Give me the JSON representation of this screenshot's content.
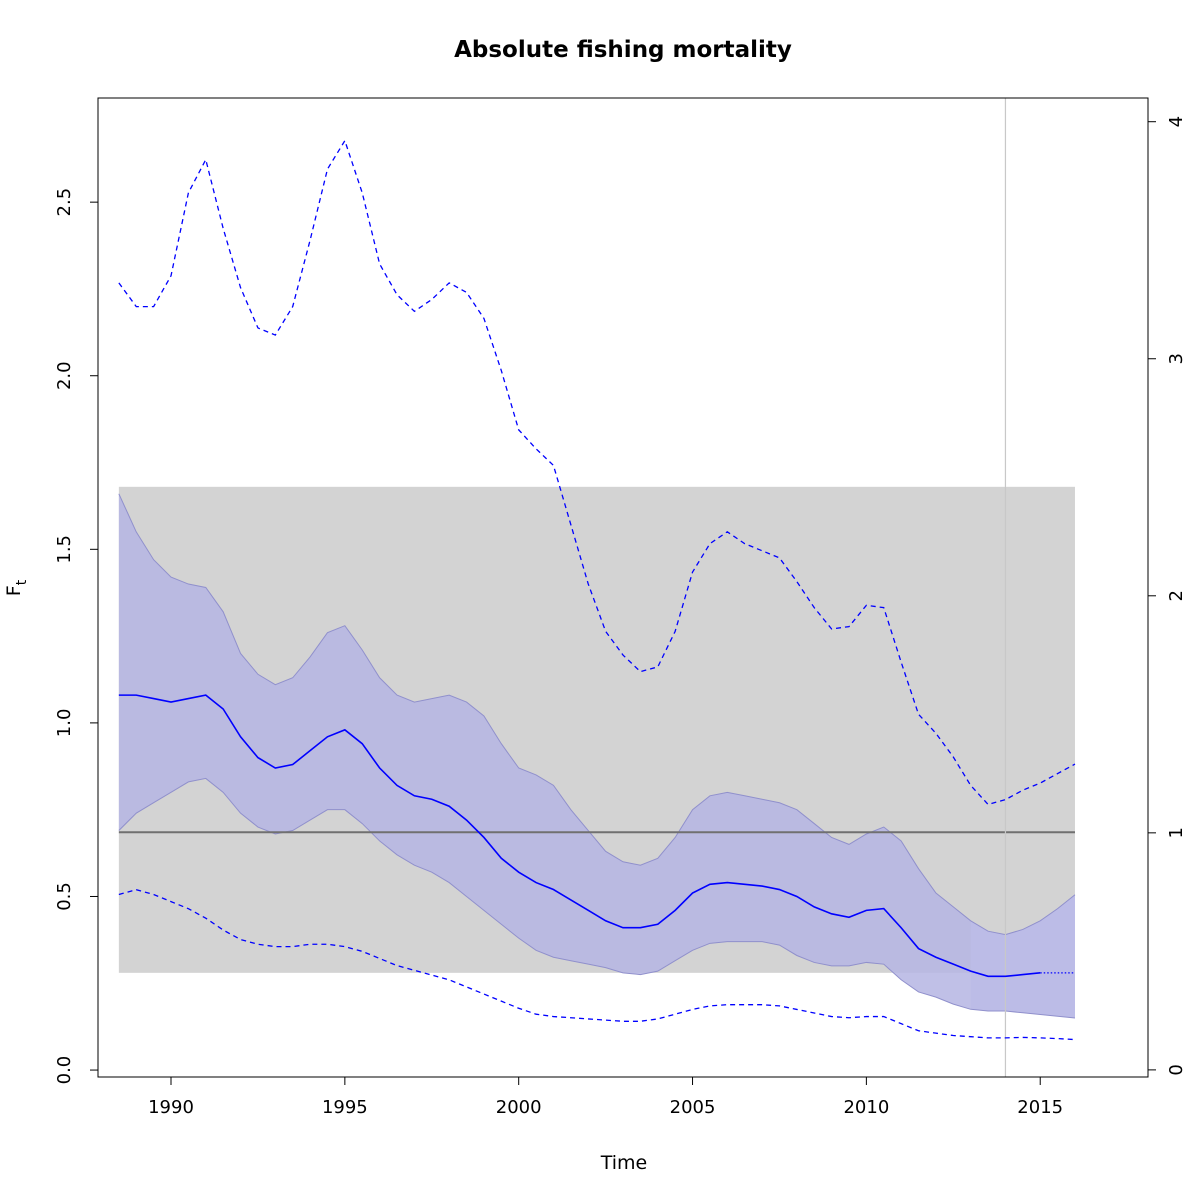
{
  "chart_data": {
    "type": "line",
    "title": "Absolute fishing mortality",
    "xlabel": "Time",
    "ylabel": "F",
    "ylabel_subscript": "t",
    "xlim": [
      1987.9,
      2018.1
    ],
    "ylim": [
      -0.02,
      2.8
    ],
    "ylim_right": [
      -0.03,
      4.1
    ],
    "x_ticks": [
      1990,
      1995,
      2000,
      2005,
      2010,
      2015
    ],
    "y_ticks": [
      0.0,
      0.5,
      1.0,
      1.5,
      2.0,
      2.5
    ],
    "y_ticks_right": [
      0,
      1,
      2,
      3,
      4
    ],
    "grid": false,
    "reference_band": {
      "x_range": [
        1988.5,
        2016.0
      ],
      "y_range": [
        0.28,
        1.68
      ],
      "color": "#d3d3d3"
    },
    "reference_line": {
      "y": 0.685,
      "color": "#707070"
    },
    "vertical_line": {
      "x": 2014.0,
      "color": "#c8c8c8"
    },
    "colors": {
      "main": "#0000ff",
      "ci_fill": "#b5b5e3",
      "ci_fill_projection": "#e3e3ff",
      "ci_border": "#9090cc"
    },
    "series": [
      {
        "role": "F",
        "style": "solid",
        "x": [
          1988.5,
          1989.0,
          1989.5,
          1990.0,
          1990.5,
          1991.0,
          1991.5,
          1992.0,
          1992.5,
          1993.0,
          1993.5,
          1994.0,
          1994.5,
          1995.0,
          1995.5,
          1996.0,
          1996.5,
          1997.0,
          1997.5,
          1998.0,
          1998.5,
          1999.0,
          1999.5,
          2000.0,
          2000.5,
          2001.0,
          2001.5,
          2002.0,
          2002.5,
          2003.0,
          2003.5,
          2004.0,
          2004.5,
          2005.0,
          2005.5,
          2006.0,
          2006.5,
          2007.0,
          2007.5,
          2008.0,
          2008.5,
          2009.0,
          2009.5,
          2010.0,
          2010.5,
          2011.0,
          2011.5,
          2012.0,
          2012.5,
          2013.0,
          2013.5,
          2014.0,
          2014.5,
          2015.0
        ],
        "y": [
          1.08,
          1.08,
          1.07,
          1.06,
          1.07,
          1.08,
          1.04,
          0.96,
          0.9,
          0.87,
          0.88,
          0.92,
          0.96,
          0.98,
          0.94,
          0.87,
          0.82,
          0.79,
          0.78,
          0.76,
          0.72,
          0.67,
          0.61,
          0.57,
          0.54,
          0.52,
          0.49,
          0.46,
          0.43,
          0.41,
          0.41,
          0.42,
          0.46,
          0.51,
          0.535,
          0.54,
          0.535,
          0.53,
          0.52,
          0.5,
          0.47,
          0.45,
          0.44,
          0.46,
          0.465,
          0.41,
          0.35,
          0.325,
          0.305,
          0.285,
          0.27,
          0.27,
          0.275,
          0.28
        ]
      },
      {
        "role": "F projection",
        "style": "dotted",
        "x": [
          2015.0,
          2015.5,
          2016.0
        ],
        "y": [
          0.28,
          0.28,
          0.28
        ]
      },
      {
        "role": "upper",
        "style": "dashed",
        "axis": "right",
        "x": [
          1988.5,
          1989.0,
          1989.5,
          1990.0,
          1990.5,
          1991.0,
          1991.5,
          1992.0,
          1992.5,
          1993.0,
          1993.5,
          1994.0,
          1994.5,
          1995.0,
          1995.5,
          1996.0,
          1996.5,
          1997.0,
          1997.5,
          1998.0,
          1998.5,
          1999.0,
          1999.5,
          2000.0,
          2000.5,
          2001.0,
          2001.5,
          2002.0,
          2002.5,
          2003.0,
          2003.5,
          2004.0,
          2004.5,
          2005.0,
          2005.5,
          2006.0,
          2006.5,
          2007.0,
          2007.5,
          2008.0,
          2008.5,
          2009.0,
          2009.5,
          2010.0,
          2010.5,
          2011.0,
          2011.5,
          2012.0,
          2012.5,
          2013.0,
          2013.5,
          2014.0,
          2014.5,
          2015.0,
          2015.5,
          2016.0
        ],
        "y": [
          3.32,
          3.22,
          3.22,
          3.35,
          3.7,
          3.84,
          3.55,
          3.3,
          3.13,
          3.1,
          3.22,
          3.5,
          3.8,
          3.92,
          3.7,
          3.4,
          3.27,
          3.2,
          3.25,
          3.32,
          3.28,
          3.17,
          2.95,
          2.7,
          2.62,
          2.55,
          2.3,
          2.05,
          1.85,
          1.75,
          1.68,
          1.7,
          1.85,
          2.1,
          2.22,
          2.27,
          2.22,
          2.19,
          2.16,
          2.06,
          1.95,
          1.86,
          1.87,
          1.96,
          1.95,
          1.72,
          1.5,
          1.42,
          1.32,
          1.2,
          1.12,
          1.14,
          1.18,
          1.21,
          1.25,
          1.29
        ]
      },
      {
        "role": "lower",
        "style": "dashed",
        "axis": "right",
        "x": [
          1988.5,
          1989.0,
          1989.5,
          1990.0,
          1990.5,
          1991.0,
          1991.5,
          1992.0,
          1992.5,
          1993.0,
          1993.5,
          1994.0,
          1994.5,
          1995.0,
          1995.5,
          1996.0,
          1996.5,
          1997.0,
          1997.5,
          1998.0,
          1998.5,
          1999.0,
          1999.5,
          2000.0,
          2000.5,
          2001.0,
          2001.5,
          2002.0,
          2002.5,
          2003.0,
          2003.5,
          2004.0,
          2004.5,
          2005.0,
          2005.5,
          2006.0,
          2006.5,
          2007.0,
          2007.5,
          2008.0,
          2008.5,
          2009.0,
          2009.5,
          2010.0,
          2010.5,
          2011.0,
          2011.5,
          2012.0,
          2012.5,
          2013.0,
          2013.5,
          2014.0,
          2014.5,
          2015.0,
          2015.5,
          2016.0
        ],
        "y": [
          0.74,
          0.76,
          0.74,
          0.71,
          0.68,
          0.64,
          0.59,
          0.55,
          0.53,
          0.52,
          0.52,
          0.53,
          0.53,
          0.52,
          0.5,
          0.47,
          0.44,
          0.42,
          0.4,
          0.38,
          0.35,
          0.32,
          0.29,
          0.26,
          0.235,
          0.225,
          0.22,
          0.215,
          0.21,
          0.205,
          0.205,
          0.215,
          0.235,
          0.255,
          0.27,
          0.275,
          0.275,
          0.275,
          0.27,
          0.255,
          0.24,
          0.225,
          0.22,
          0.225,
          0.225,
          0.195,
          0.165,
          0.155,
          0.145,
          0.14,
          0.135,
          0.135,
          0.137,
          0.135,
          0.132,
          0.128
        ]
      },
      {
        "role": "ci_upper",
        "style": "band",
        "x": [
          1988.5,
          1989.0,
          1989.5,
          1990.0,
          1990.5,
          1991.0,
          1991.5,
          1992.0,
          1992.5,
          1993.0,
          1993.5,
          1994.0,
          1994.5,
          1995.0,
          1995.5,
          1996.0,
          1996.5,
          1997.0,
          1997.5,
          1998.0,
          1998.5,
          1999.0,
          1999.5,
          2000.0,
          2000.5,
          2001.0,
          2001.5,
          2002.0,
          2002.5,
          2003.0,
          2003.5,
          2004.0,
          2004.5,
          2005.0,
          2005.5,
          2006.0,
          2006.5,
          2007.0,
          2007.5,
          2008.0,
          2008.5,
          2009.0,
          2009.5,
          2010.0,
          2010.5,
          2011.0,
          2011.5,
          2012.0,
          2012.5,
          2013.0,
          2013.5,
          2014.0,
          2014.5,
          2015.0,
          2015.5,
          2016.0
        ],
        "y": [
          1.66,
          1.55,
          1.47,
          1.42,
          1.4,
          1.39,
          1.32,
          1.2,
          1.14,
          1.11,
          1.13,
          1.19,
          1.26,
          1.28,
          1.21,
          1.13,
          1.08,
          1.06,
          1.07,
          1.08,
          1.06,
          1.02,
          0.94,
          0.87,
          0.85,
          0.82,
          0.75,
          0.69,
          0.63,
          0.6,
          0.59,
          0.61,
          0.67,
          0.75,
          0.79,
          0.8,
          0.79,
          0.78,
          0.77,
          0.75,
          0.71,
          0.67,
          0.65,
          0.68,
          0.7,
          0.66,
          0.58,
          0.51,
          0.47,
          0.43,
          0.4,
          0.39,
          0.405,
          0.43,
          0.465,
          0.505
        ]
      },
      {
        "role": "ci_lower",
        "style": "band",
        "x": [
          1988.5,
          1989.0,
          1989.5,
          1990.0,
          1990.5,
          1991.0,
          1991.5,
          1992.0,
          1992.5,
          1993.0,
          1993.5,
          1994.0,
          1994.5,
          1995.0,
          1995.5,
          1996.0,
          1996.5,
          1997.0,
          1997.5,
          1998.0,
          1998.5,
          1999.0,
          1999.5,
          2000.0,
          2000.5,
          2001.0,
          2001.5,
          2002.0,
          2002.5,
          2003.0,
          2003.5,
          2004.0,
          2004.5,
          2005.0,
          2005.5,
          2006.0,
          2006.5,
          2007.0,
          2007.5,
          2008.0,
          2008.5,
          2009.0,
          2009.5,
          2010.0,
          2010.5,
          2011.0,
          2011.5,
          2012.0,
          2012.5,
          2013.0,
          2013.5,
          2014.0,
          2014.5,
          2015.0,
          2015.5,
          2016.0
        ],
        "y": [
          0.69,
          0.74,
          0.77,
          0.8,
          0.83,
          0.84,
          0.8,
          0.74,
          0.7,
          0.68,
          0.69,
          0.72,
          0.75,
          0.75,
          0.71,
          0.66,
          0.62,
          0.59,
          0.57,
          0.54,
          0.5,
          0.46,
          0.42,
          0.38,
          0.345,
          0.325,
          0.315,
          0.305,
          0.295,
          0.28,
          0.275,
          0.285,
          0.315,
          0.345,
          0.365,
          0.37,
          0.37,
          0.37,
          0.36,
          0.33,
          0.31,
          0.3,
          0.3,
          0.31,
          0.305,
          0.26,
          0.225,
          0.21,
          0.19,
          0.175,
          0.17,
          0.17,
          0.165,
          0.16,
          0.155,
          0.15
        ]
      }
    ]
  }
}
